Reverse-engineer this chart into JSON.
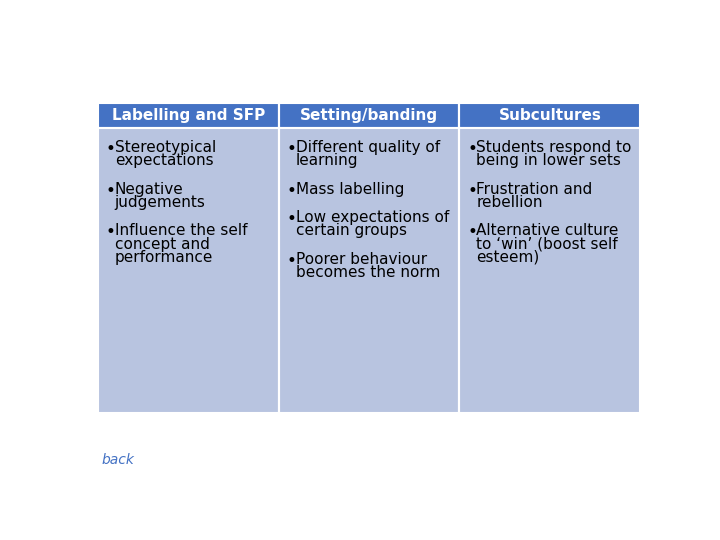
{
  "headers": [
    "Labelling and SFP",
    "Setting/banding",
    "Subcultures"
  ],
  "header_bg": "#4472c4",
  "header_text_color": "#ffffff",
  "cell_bg": "#b8c4e0",
  "cell_text_color": "#000000",
  "col1_bullets": [
    "Stereotypical\nexpectations",
    "Negative\njudgements",
    "Influence the self\nconcept and\nperformance"
  ],
  "col2_bullets": [
    "Different quality of\nlearning",
    "Mass labelling",
    "Low expectations of\ncertain groups",
    "Poorer behaviour\nbecomes the norm"
  ],
  "col3_bullets": [
    "Students respond to\nbeing in lower sets",
    "Frustration and\nrebellion",
    "Alternative culture\nto ‘win’ (boost self\nesteem)"
  ],
  "back_text": "back",
  "back_color": "#4472c4",
  "fig_width": 7.2,
  "fig_height": 5.4,
  "dpi": 100
}
